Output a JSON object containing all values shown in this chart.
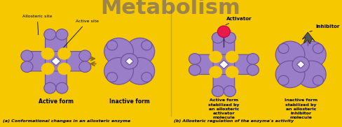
{
  "bg_color": "#F5C800",
  "enzyme_color": "#9B7EC8",
  "enzyme_edge_color": "#6B4E9A",
  "activator_color": "#E8194B",
  "activator_edge": "#CC0030",
  "inhibitor_color": "#555555",
  "inhibitor_edge": "#222222",
  "arrow_color": "#8B6914",
  "text_color": "#000000",
  "label_a": "(a) Conformational changes in an allosteric enzyme",
  "label_b": "(b) Allosteric regulation of the enzyme's activity",
  "label_active_form_left": "Active form",
  "label_inactive_form_left": "Inactive form",
  "label_allosteric_site": "Allosteric site",
  "label_active_site": "Active site",
  "label_activator_top": "Activator",
  "label_inhibitor_top": "Inhibitor",
  "label_active_form_right": "Active form\nstabilized by\nan allosteric\nactivator\nmolecule",
  "label_inactive_form_right": "Inactive form\nstabilized by\nan allosteric\ninhibitor\nmolecule",
  "divider_color": "#CCAA00"
}
